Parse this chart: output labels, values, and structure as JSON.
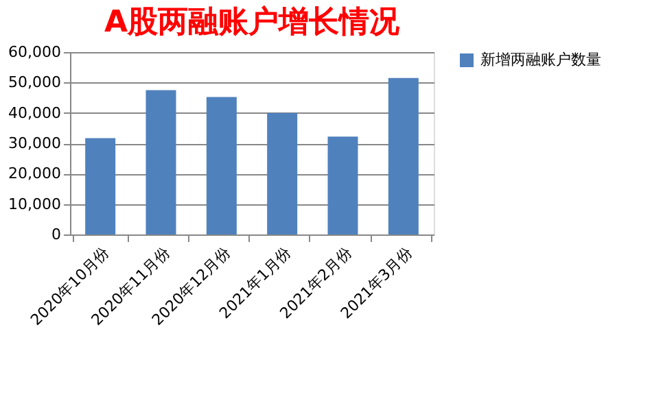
{
  "chart_data": {
    "type": "bar",
    "title": "A股两融账户增长情况",
    "categories": [
      "2020年10月份",
      "2020年11月份",
      "2020年12月份",
      "2021年1月份",
      "2021年2月份",
      "2021年3月份"
    ],
    "series": [
      {
        "name": "新增两融账户数量",
        "color": "#4f81bd",
        "values": [
          31700,
          47500,
          45200,
          40000,
          32200,
          51500
        ]
      }
    ],
    "ylim": [
      0,
      60000
    ],
    "yticks": [
      0,
      {
        "value": 10000,
        "label": "10,000"
      },
      {
        "value": 20000,
        "label": "20,000"
      },
      {
        "value": 30000,
        "label": "30,000"
      },
      {
        "value": 40000,
        "label": "40,000"
      },
      {
        "value": 50000,
        "label": "50,000"
      },
      {
        "value": 60000,
        "label": "60,000"
      }
    ],
    "grid": "y",
    "legend": "right"
  }
}
